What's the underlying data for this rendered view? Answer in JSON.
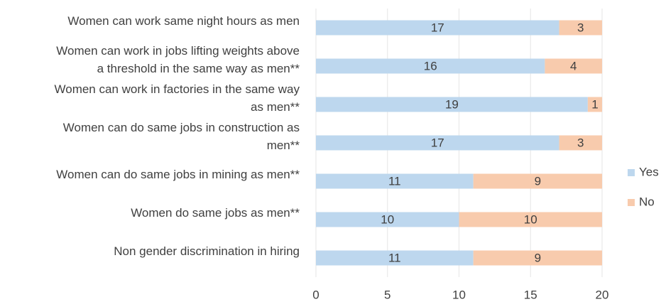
{
  "chart_data": {
    "type": "stacked_barh",
    "categories": [
      "Women can work same night hours as men",
      "Women can work in jobs lifting weights above a threshold in the same way as men**",
      "Women can work in factories in the same way as men**",
      "Women can do same jobs in construction as men**",
      "Women can do same jobs in mining as men**",
      "Women do same jobs as men**",
      "Non gender discrimination in hiring"
    ],
    "series": [
      {
        "name": "Yes",
        "color": "#bdd7ee",
        "values": [
          17,
          16,
          19,
          17,
          11,
          10,
          11
        ]
      },
      {
        "name": "No",
        "color": "#f8cbad",
        "values": [
          3,
          4,
          1,
          3,
          9,
          10,
          9
        ]
      }
    ],
    "xlim": [
      0,
      20
    ],
    "xticks": [
      0,
      5,
      10,
      15,
      20
    ],
    "grid": true,
    "legend": "right"
  }
}
